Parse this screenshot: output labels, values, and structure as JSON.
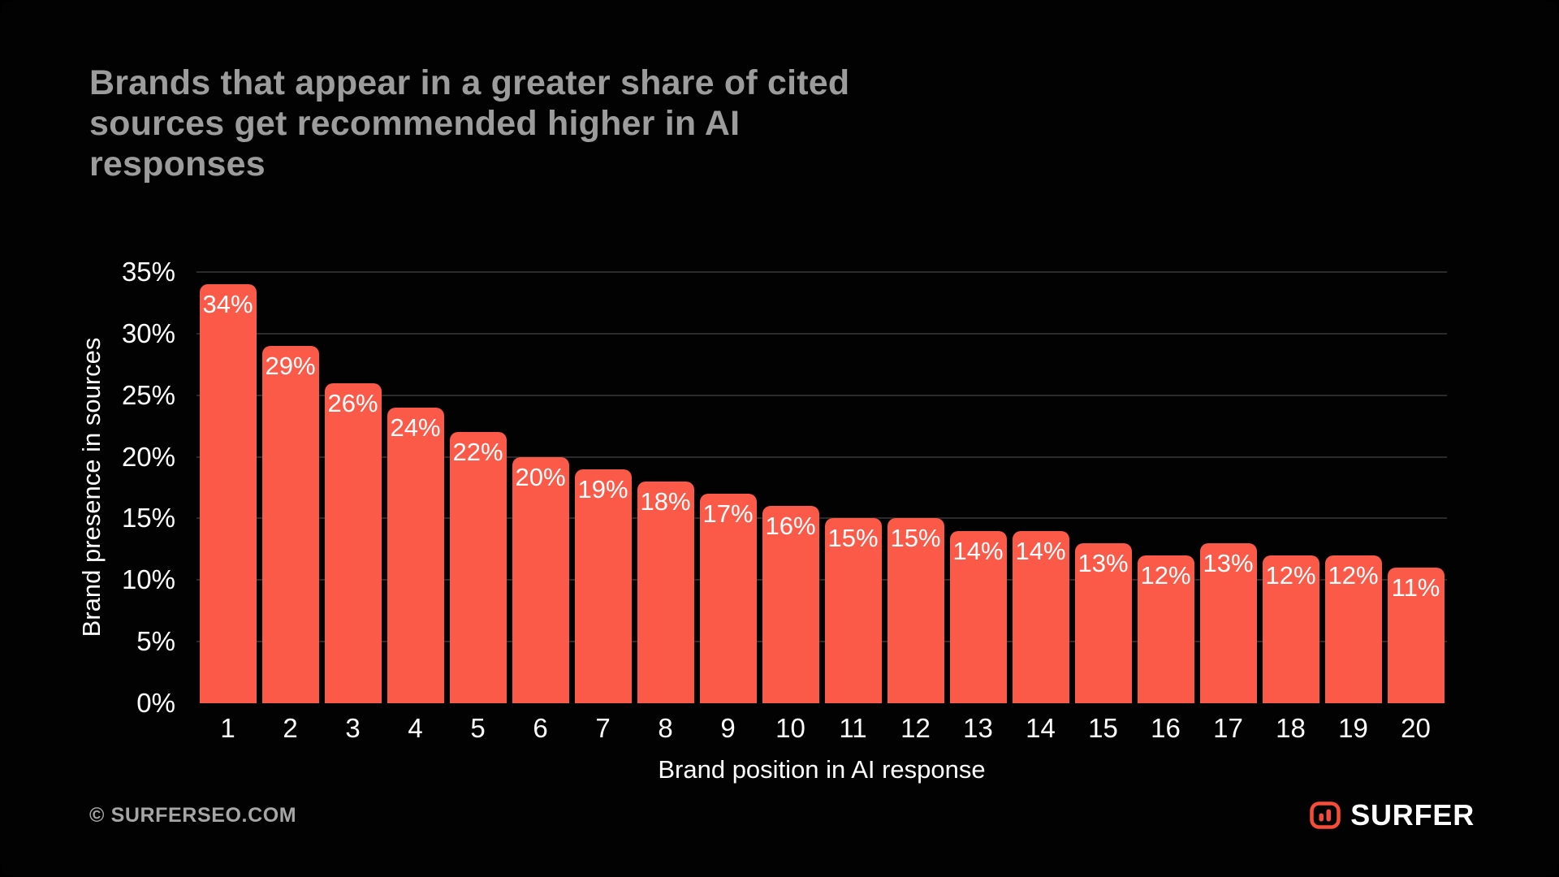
{
  "title": "Brands that appear in a greater share of cited\nsources get recommended higher in AI\nresponses",
  "chart_data": {
    "type": "bar",
    "categories": [
      "1",
      "2",
      "3",
      "4",
      "5",
      "6",
      "7",
      "8",
      "9",
      "10",
      "11",
      "12",
      "13",
      "14",
      "15",
      "16",
      "17",
      "18",
      "19",
      "20"
    ],
    "values": [
      34,
      29,
      26,
      24,
      22,
      20,
      19,
      18,
      17,
      16,
      15,
      15,
      14,
      14,
      13,
      12,
      13,
      12,
      12,
      11
    ],
    "bar_labels": [
      "34%",
      "29%",
      "26%",
      "24%",
      "22%",
      "20%",
      "19%",
      "18%",
      "17%",
      "16%",
      "15%",
      "15%",
      "14%",
      "14%",
      "13%",
      "12%",
      "13%",
      "12%",
      "12%",
      "11%"
    ],
    "title": "Brands that appear in a greater share of cited sources get recommended higher in AI responses",
    "xlabel": "Brand position in AI response",
    "ylabel": "Brand presence in sources",
    "ylim": [
      0,
      35
    ],
    "ytick_step": 5,
    "yticks": [
      "0%",
      "5%",
      "10%",
      "15%",
      "20%",
      "25%",
      "30%",
      "35%"
    ],
    "grid": true,
    "legend": "none",
    "bar_color": "#FB5A49"
  },
  "footer": {
    "copyright": "© SURFERSEO.COM",
    "brand": "SURFER"
  },
  "colors": {
    "background": "#020202",
    "bar": "#FB5A49",
    "title_text": "#9C9C9C",
    "axis_text": "#FFFFFF",
    "gridline": "#2B2B2B",
    "muted_text": "#A6A6A6",
    "logo_red": "#F74C38"
  }
}
